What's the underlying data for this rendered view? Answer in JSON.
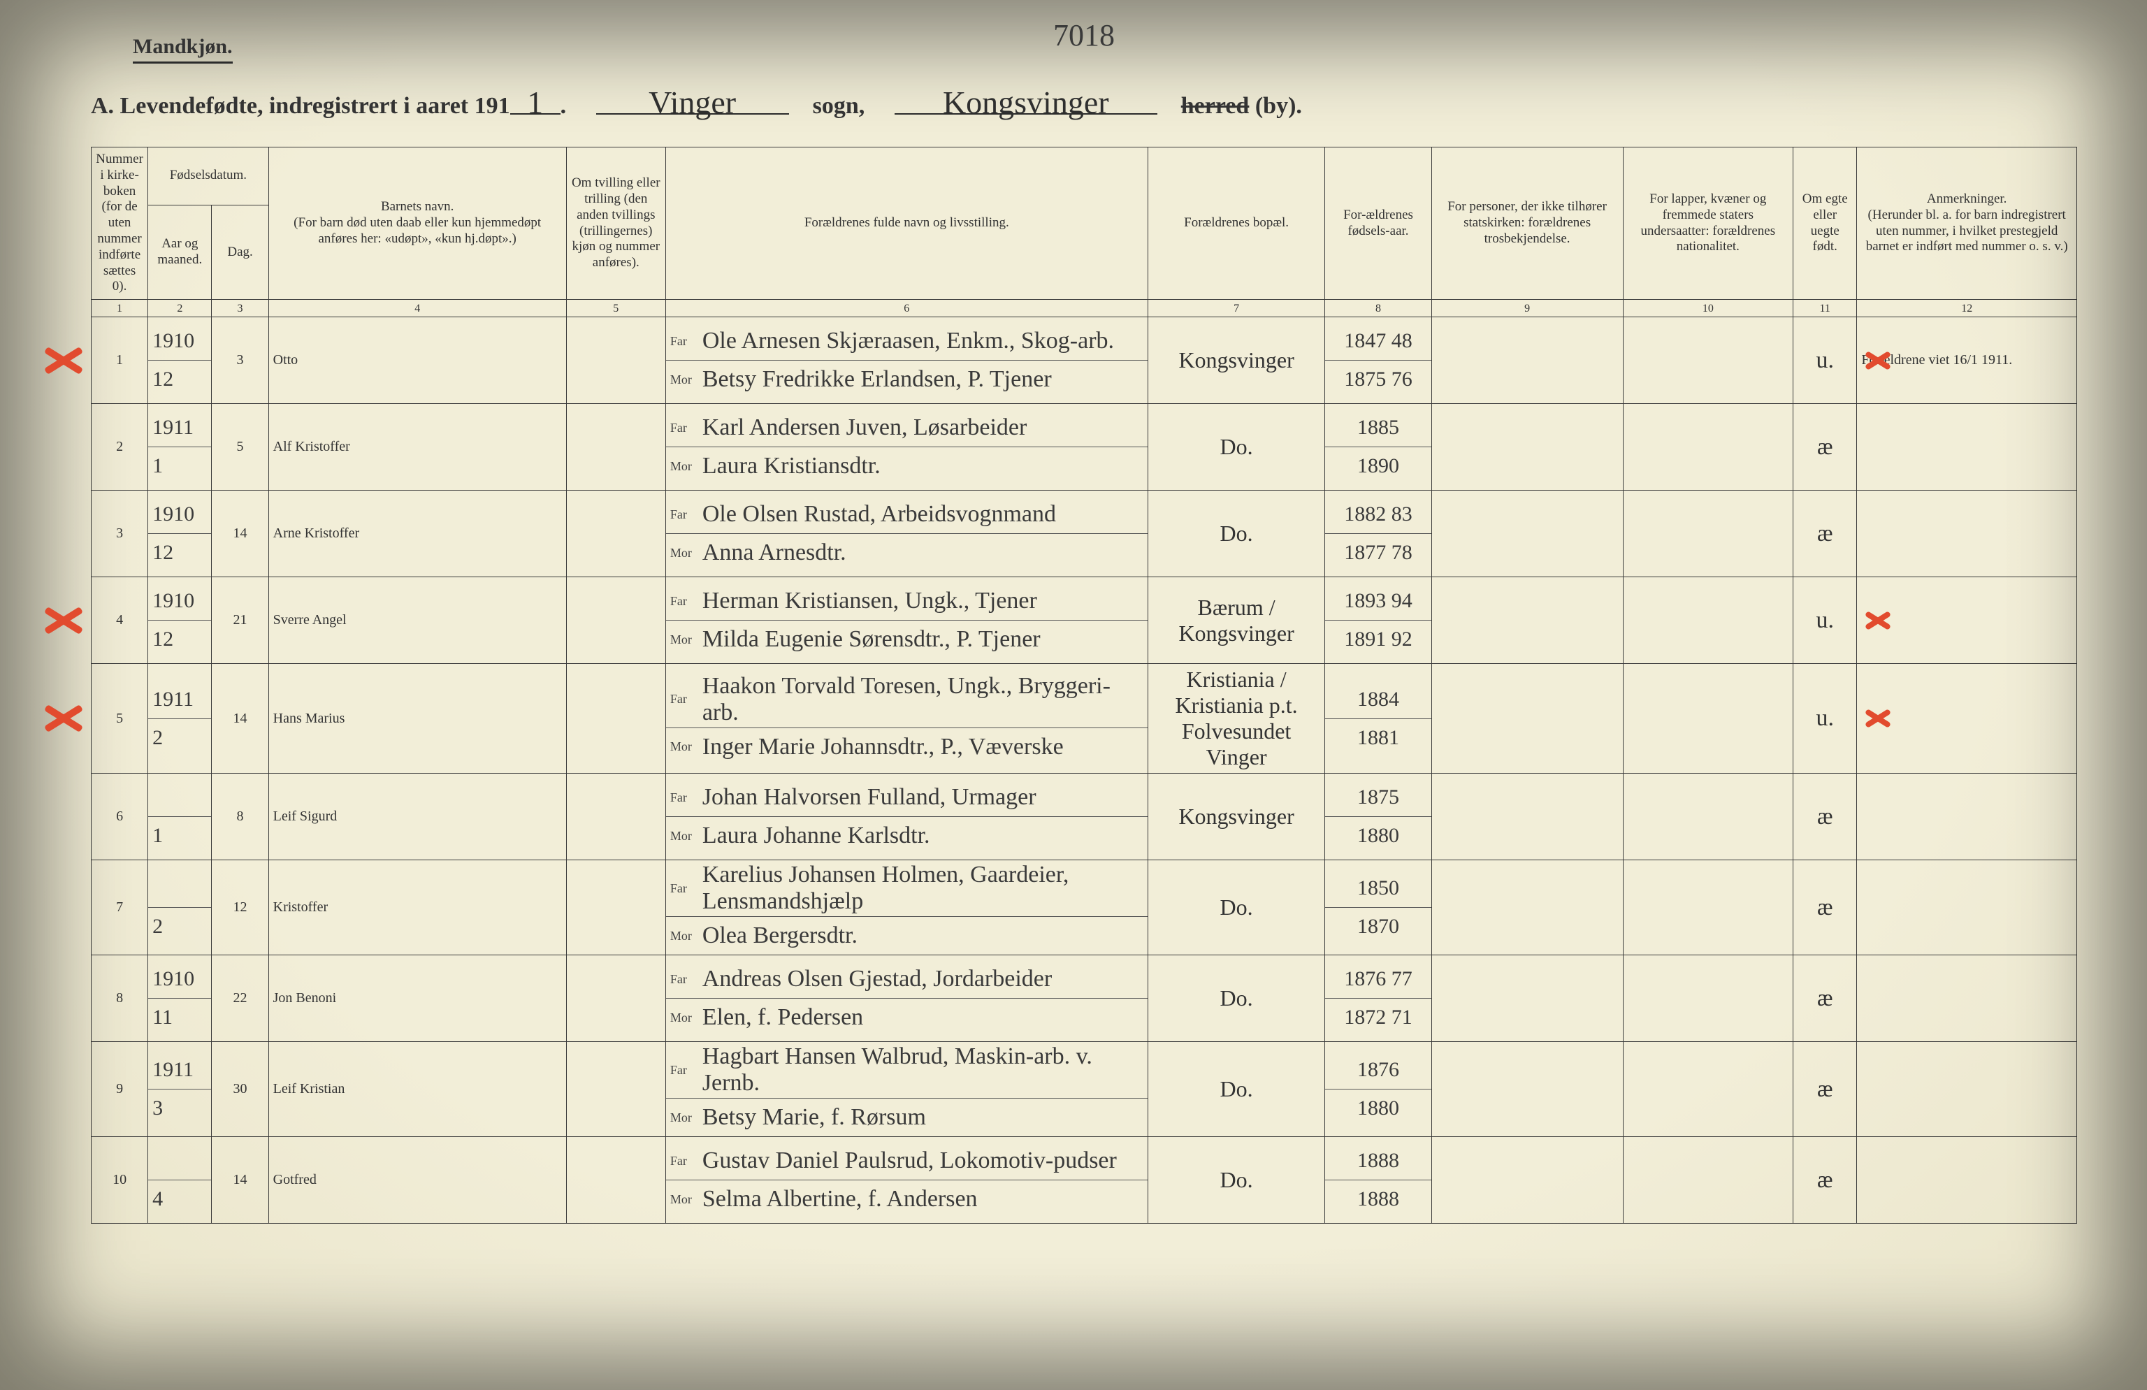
{
  "header": {
    "mandkjon": "Mandkjøn.",
    "top_number": "7018",
    "title_prefix": "A.  Levendefødte, indregistrert i aaret 191",
    "year_last_digit": "1",
    "title_mid1": ".",
    "sogn_value": "Vinger",
    "sogn_label": "sogn,",
    "herred_value": "Kongsvinger",
    "herred_label": "herred",
    "by_label": "(by)."
  },
  "columns": {
    "c1": "Nummer i kirke-boken (for de uten nummer indførte sættes 0).",
    "c2_group": "Fødselsdatum.",
    "c2a": "Aar og maaned.",
    "c2b": "Dag.",
    "c4": "Barnets navn.\n(For barn død uten daab eller kun hjemmedøpt anføres her: «udøpt», «kun hj.døpt».)",
    "c5": "Om tvilling eller trilling (den anden tvillings (trillingernes) kjøn og nummer anføres).",
    "c6": "Forældrenes fulde navn og livsstilling.",
    "c7": "Forældrenes bopæl.",
    "c8": "For-ældrenes fødsels-aar.",
    "c9": "For personer, der ikke tilhører statskirken: forældrenes trosbekjendelse.",
    "c10": "For lapper, kvæner og fremmede staters undersaatter: forældrenes nationalitet.",
    "c11": "Om egte eller uegte født.",
    "c12": "Anmerkninger.\n(Herunder bl. a. for barn indregistrert uten nummer, i hvilket prestegjeld barnet er indført med nummer o. s. v.)",
    "nums": [
      "1",
      "2",
      "3",
      "4",
      "5",
      "6",
      "7",
      "8",
      "9",
      "10",
      "11",
      "12"
    ]
  },
  "far_label": "Far",
  "mor_label": "Mor",
  "rows": [
    {
      "n": "1",
      "year": "1910",
      "month": "12",
      "day": "3",
      "name": "Otto",
      "far": "Ole Arnesen Skjæraasen, Enkm., Skog-arb.",
      "mor": "Betsy Fredrikke Erlandsen, P. Tjener",
      "bopel": "Kongsvinger",
      "fy_far": "1847 48",
      "fy_mor": "1875 76",
      "legit": "u.",
      "remarks": "Forældrene viet 16/1 1911.",
      "red_left": true,
      "red_right": true
    },
    {
      "n": "2",
      "year": "1911",
      "month": "1",
      "day": "5",
      "name": "Alf Kristoffer",
      "far": "Karl Andersen Juven, Løsarbeider",
      "mor": "Laura Kristiansdtr.",
      "bopel": "Do.",
      "fy_far": "1885",
      "fy_mor": "1890",
      "legit": "æ",
      "remarks": "",
      "red_left": false,
      "red_right": false
    },
    {
      "n": "3",
      "year": "1910",
      "month": "12",
      "day": "14",
      "name": "Arne Kristoffer",
      "far": "Ole Olsen Rustad, Arbeidsvognmand",
      "mor": "Anna Arnesdtr.",
      "bopel": "Do.",
      "fy_far": "1882 83",
      "fy_mor": "1877 78",
      "legit": "æ",
      "remarks": "",
      "red_left": false,
      "red_right": false
    },
    {
      "n": "4",
      "year": "1910",
      "month": "12",
      "day": "21",
      "name": "Sverre Angel",
      "far": "Herman Kristiansen, Ungk., Tjener",
      "mor": "Milda Eugenie Sørensdtr., P. Tjener",
      "bopel": "Bærum / Kongsvinger",
      "fy_far": "1893 94",
      "fy_mor": "1891 92",
      "legit": "u.",
      "remarks": "",
      "red_left": true,
      "red_right": true
    },
    {
      "n": "5",
      "year": "1911",
      "month": "2",
      "day": "14",
      "name": "Hans Marius",
      "far": "Haakon Torvald Toresen, Ungk., Bryggeri-arb.",
      "mor": "Inger Marie Johannsdtr., P., Væverske",
      "bopel": "Kristiania / Kristiania p.t. Folvesundet Vinger",
      "fy_far": "1884",
      "fy_mor": "1881",
      "legit": "u.",
      "remarks": "",
      "red_left": true,
      "red_right": true
    },
    {
      "n": "6",
      "year": "",
      "month": "1",
      "day": "8",
      "name": "Leif Sigurd",
      "far": "Johan Halvorsen Fulland, Urmager",
      "mor": "Laura Johanne Karlsdtr.",
      "bopel": "Kongsvinger",
      "fy_far": "1875",
      "fy_mor": "1880",
      "legit": "æ",
      "remarks": "",
      "red_left": false,
      "red_right": false
    },
    {
      "n": "7",
      "year": "",
      "month": "2",
      "day": "12",
      "name": "Kristoffer",
      "far": "Karelius Johansen Holmen, Gaardeier, Lensmandshjælp",
      "mor": "Olea Bergersdtr.",
      "bopel": "Do.",
      "fy_far": "1850",
      "fy_mor": "1870",
      "legit": "æ",
      "remarks": "",
      "red_left": false,
      "red_right": false
    },
    {
      "n": "8",
      "year": "1910",
      "month": "11",
      "day": "22",
      "name": "Jon Benoni",
      "far": "Andreas Olsen Gjestad, Jordarbeider",
      "mor": "Elen, f. Pedersen",
      "bopel": "Do.",
      "fy_far": "1876 77",
      "fy_mor": "1872 71",
      "legit": "æ",
      "remarks": "",
      "red_left": false,
      "red_right": false
    },
    {
      "n": "9",
      "year": "1911",
      "month": "3",
      "day": "30",
      "name": "Leif Kristian",
      "far": "Hagbart Hansen Walbrud, Maskin-arb. v. Jernb.",
      "mor": "Betsy Marie, f. Rørsum",
      "bopel": "Do.",
      "fy_far": "1876",
      "fy_mor": "1880",
      "legit": "æ",
      "remarks": "",
      "red_left": false,
      "red_right": false
    },
    {
      "n": "10",
      "year": "",
      "month": "4",
      "day": "14",
      "name": "Gotfred",
      "far": "Gustav Daniel Paulsrud, Lokomotiv-pudser",
      "mor": "Selma Albertine, f. Andersen",
      "bopel": "Do.",
      "fy_far": "1888",
      "fy_mor": "1888",
      "legit": "æ",
      "remarks": "",
      "red_left": false,
      "red_right": false
    }
  ]
}
